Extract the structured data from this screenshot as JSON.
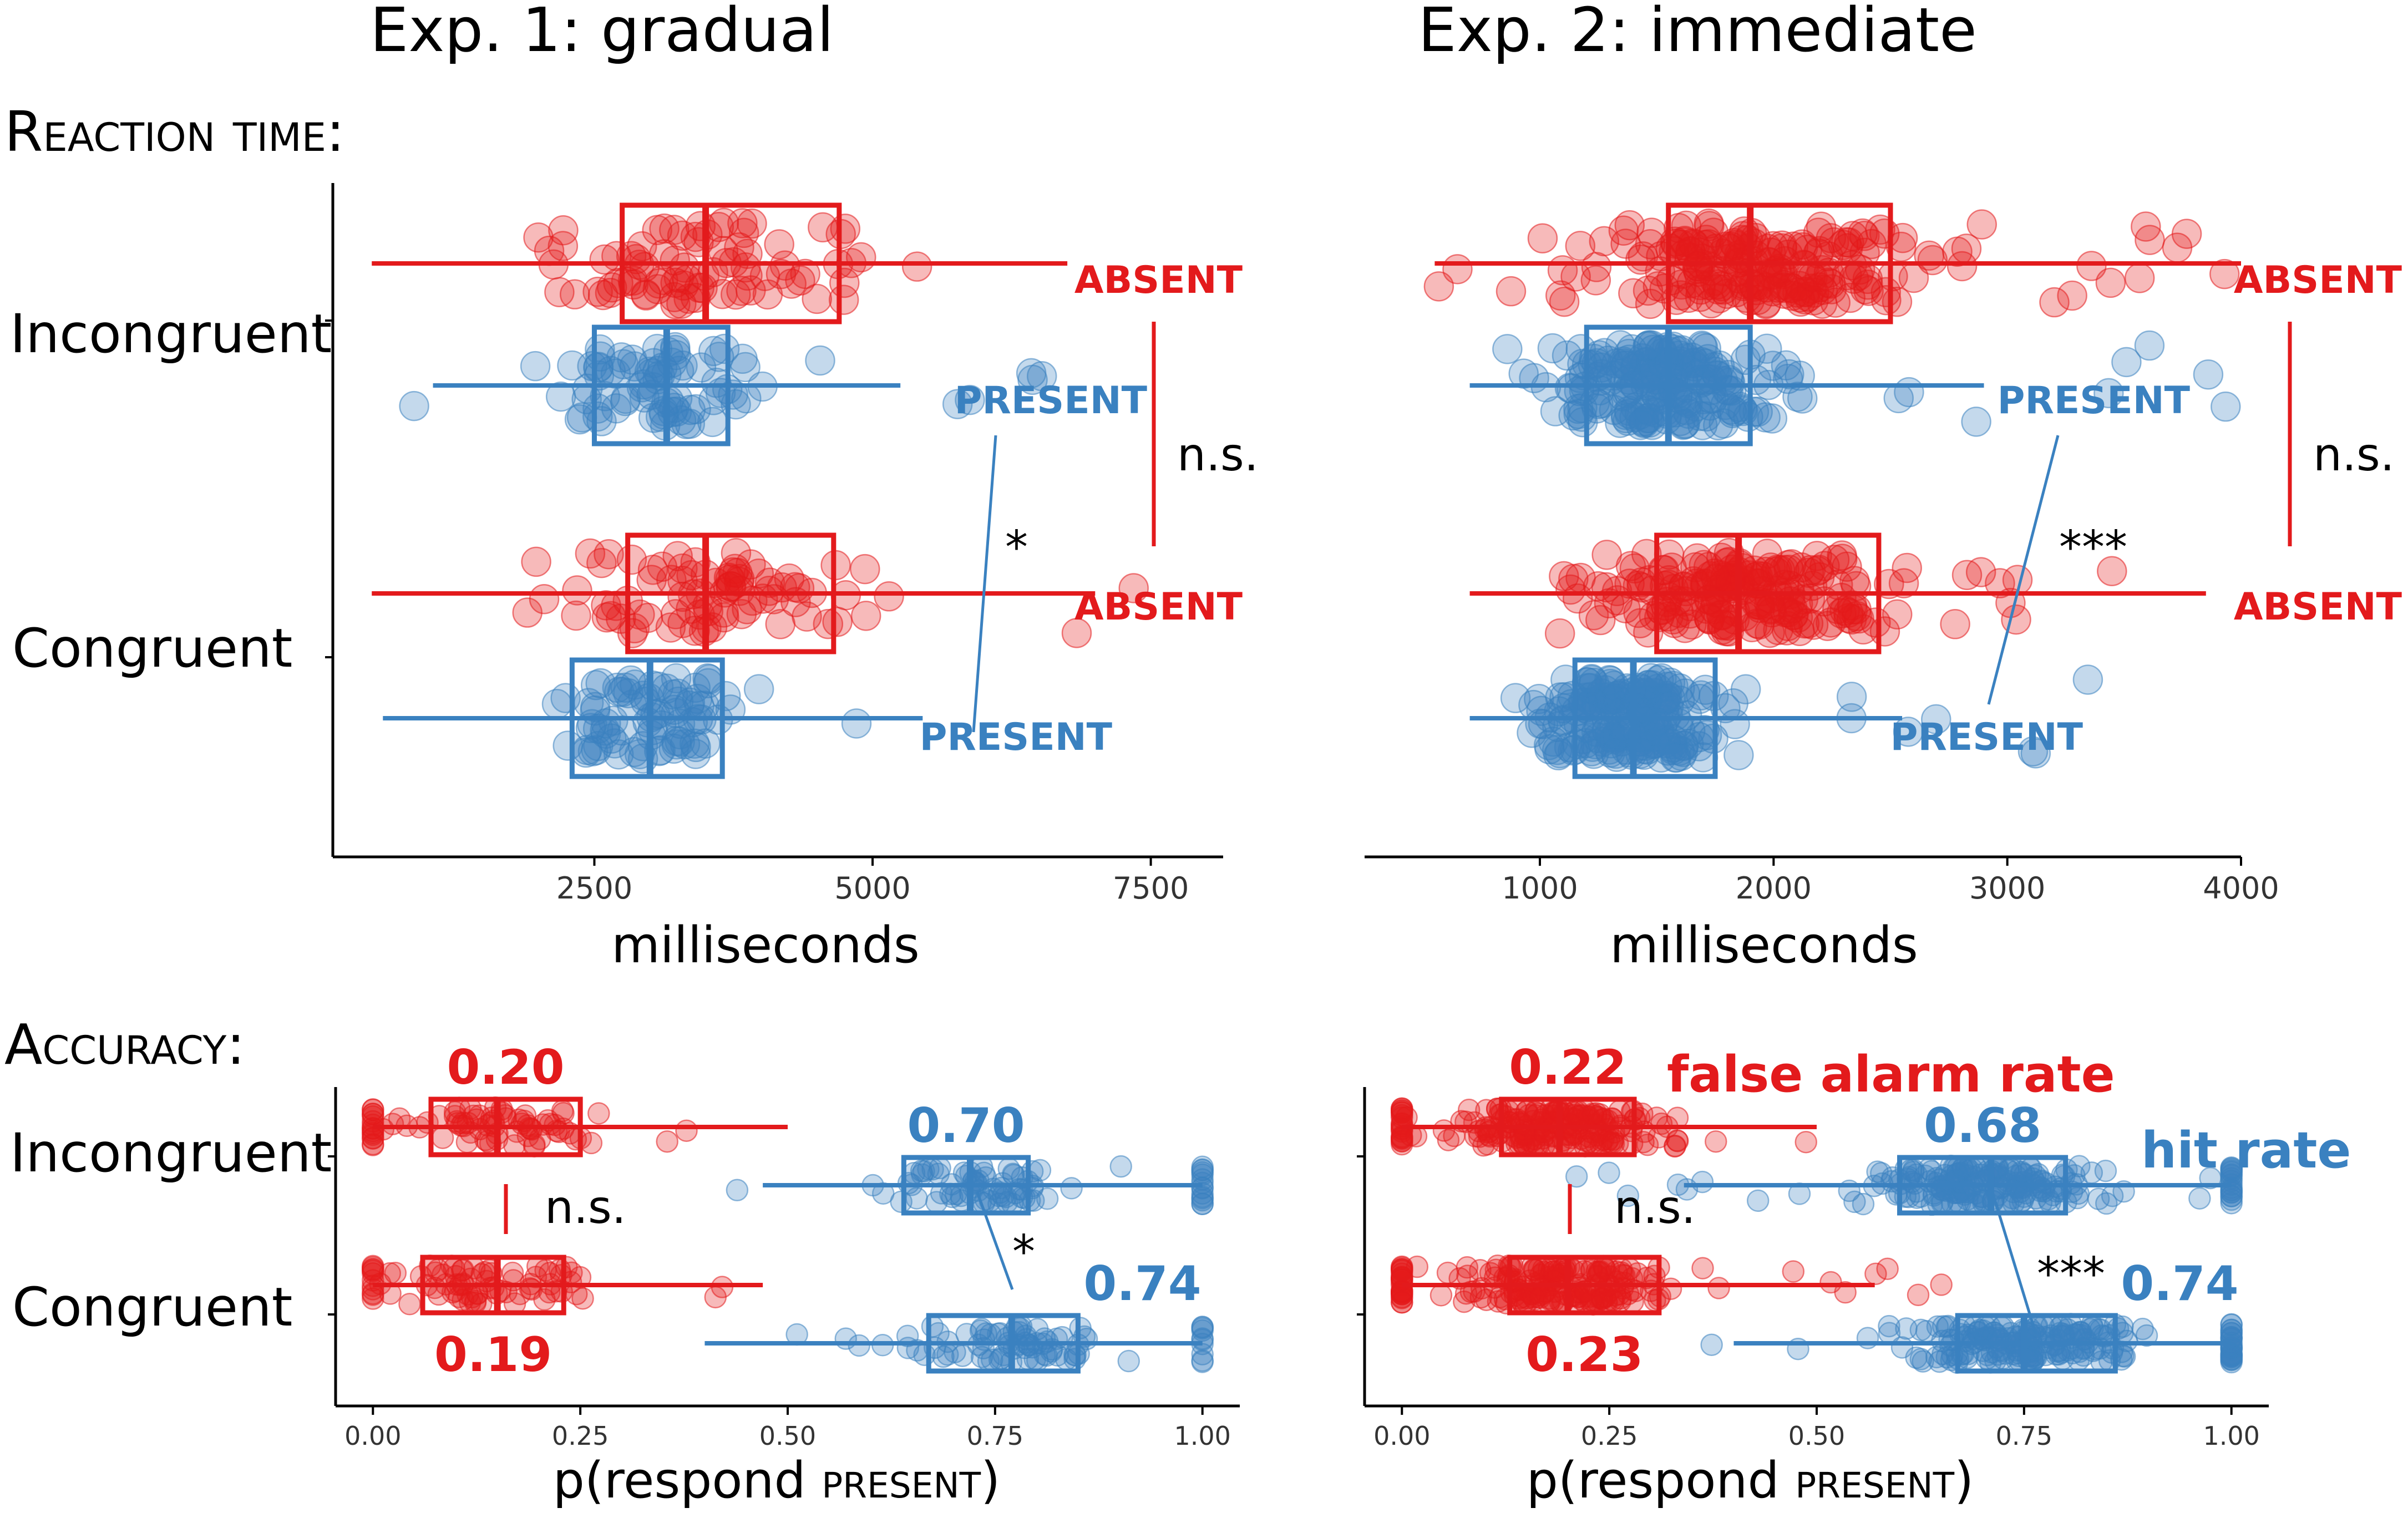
{
  "colors": {
    "absent": "#e31a1c",
    "present": "#3a81c0",
    "axis": "#000000",
    "tick": "#333333"
  },
  "titles": {
    "left": "Exp. 1: gradual",
    "right": "Exp. 2: immediate"
  },
  "sections": {
    "rt": "Reaction time:",
    "acc": "Accuracy:"
  },
  "row_labels": {
    "incongruent": "Incongruent",
    "congruent": "Congruent"
  },
  "series_labels": {
    "absent": "ABSENT",
    "present": "PRESENT"
  },
  "annotations": {
    "ns": "n.s.",
    "star1": "*",
    "star3": "***",
    "false_alarm_rate": "false alarm rate",
    "hit_rate": "hit rate"
  },
  "chart_data": [
    {
      "id": "rt-exp1",
      "type": "boxplot",
      "title": "Exp. 1: gradual",
      "section": "Reaction time:",
      "xlabel": "milliseconds",
      "xlim": [
        150,
        8150
      ],
      "xticks": [
        2500,
        5000,
        7500
      ],
      "xtick_labels": [
        "2500",
        "5000",
        "7500"
      ],
      "categories": [
        "Incongruent",
        "Congruent"
      ],
      "series": [
        {
          "name": "ABSENT",
          "category": "Incongruent",
          "whisker_low": 500,
          "q1": 2750,
          "median": 3500,
          "q3": 4700,
          "whisker_high": 6750,
          "point_range": [
            480,
            6900
          ],
          "n_points": 85
        },
        {
          "name": "PRESENT",
          "category": "Incongruent",
          "whisker_low": 1050,
          "q1": 2500,
          "median": 3150,
          "q3": 3700,
          "whisker_high": 5250,
          "point_range": [
            600,
            6550
          ],
          "n_points": 85
        },
        {
          "name": "ABSENT",
          "category": "Congruent",
          "whisker_low": 500,
          "q1": 2800,
          "median": 3500,
          "q3": 4650,
          "whisker_high": 7000,
          "point_range": [
            450,
            8100
          ],
          "n_points": 85
        },
        {
          "name": "PRESENT",
          "category": "Congruent",
          "whisker_low": 600,
          "q1": 2300,
          "median": 3000,
          "q3": 3650,
          "whisker_high": 5450,
          "point_range": [
            550,
            5550
          ],
          "n_points": 85
        }
      ],
      "labels": [
        {
          "text": "ABSENT",
          "x": 7500,
          "row": "incongruent-absent"
        },
        {
          "text": "PRESENT",
          "x": 7500,
          "row": "incongruent-present"
        },
        {
          "text": "ABSENT",
          "x": 7500,
          "row": "congruent-absent"
        },
        {
          "text": "PRESENT",
          "x": 7500,
          "row": "congruent-present"
        }
      ],
      "significance": [
        {
          "between": "ABSENT (Incongruent vs Congruent)",
          "text": "n.s."
        },
        {
          "between": "PRESENT (Incongruent vs Congruent)",
          "text": "*"
        }
      ]
    },
    {
      "id": "rt-exp2",
      "type": "boxplot",
      "title": "Exp. 2: immediate",
      "section": "Reaction time:",
      "xlabel": "milliseconds",
      "xlim": [
        250,
        4000
      ],
      "xticks": [
        1000,
        2000,
        3000,
        4000
      ],
      "xtick_labels": [
        "1000",
        "2000",
        "3000",
        "4000"
      ],
      "categories": [
        "Incongruent",
        "Congruent"
      ],
      "series": [
        {
          "name": "ABSENT",
          "category": "Incongruent",
          "whisker_low": 550,
          "q1": 1550,
          "median": 1900,
          "q3": 2500,
          "whisker_high": 4000,
          "point_range": [
            500,
            4000
          ],
          "n_points": 220
        },
        {
          "name": "PRESENT",
          "category": "Incongruent",
          "whisker_low": 700,
          "q1": 1200,
          "median": 1550,
          "q3": 1900,
          "whisker_high": 2900,
          "point_range": [
            700,
            3950
          ],
          "n_points": 220
        },
        {
          "name": "ABSENT",
          "category": "Congruent",
          "whisker_low": 700,
          "q1": 1500,
          "median": 1850,
          "q3": 2450,
          "whisker_high": 3850,
          "point_range": [
            700,
            3600
          ],
          "n_points": 220
        },
        {
          "name": "PRESENT",
          "category": "Congruent",
          "whisker_low": 700,
          "q1": 1150,
          "median": 1400,
          "q3": 1750,
          "whisker_high": 2550,
          "point_range": [
            700,
            3550
          ],
          "n_points": 220
        }
      ],
      "labels": [
        {
          "text": "ABSENT",
          "x": 3800,
          "row": "incongruent-absent"
        },
        {
          "text": "PRESENT",
          "x": 3200,
          "row": "incongruent-present"
        },
        {
          "text": "ABSENT",
          "x": 3800,
          "row": "congruent-absent"
        },
        {
          "text": "PRESENT",
          "x": 3200,
          "row": "congruent-present"
        }
      ],
      "significance": [
        {
          "between": "ABSENT (Incongruent vs Congruent)",
          "text": "n.s."
        },
        {
          "between": "PRESENT (Incongruent vs Congruent)",
          "text": "***"
        }
      ]
    },
    {
      "id": "acc-exp1",
      "type": "boxplot",
      "title": "Exp. 1: gradual",
      "section": "Accuracy:",
      "xlabel": "p(respond PRESENT)",
      "xlim": [
        -0.045,
        1.045
      ],
      "xticks": [
        0,
        0.25,
        0.5,
        0.75,
        1.0
      ],
      "xtick_labels": [
        "0.00",
        "0.25",
        "0.50",
        "0.75",
        "1.00"
      ],
      "categories": [
        "Incongruent",
        "Congruent"
      ],
      "series": [
        {
          "name": "false alarm rate",
          "category": "Incongruent",
          "whisker_low": 0.0,
          "q1": 0.07,
          "median": 0.15,
          "q3": 0.25,
          "whisker_high": 0.5,
          "mean_label": "0.20",
          "point_range": [
            0.0,
            0.5
          ],
          "n_points": 85
        },
        {
          "name": "hit rate",
          "category": "Incongruent",
          "whisker_low": 0.47,
          "q1": 0.64,
          "median": 0.72,
          "q3": 0.79,
          "whisker_high": 1.0,
          "mean_label": "0.70",
          "point_range": [
            0.36,
            1.0
          ],
          "n_points": 85
        },
        {
          "name": "false alarm rate",
          "category": "Congruent",
          "whisker_low": 0.0,
          "q1": 0.06,
          "median": 0.15,
          "q3": 0.23,
          "whisker_high": 0.47,
          "mean_label": "0.19",
          "point_range": [
            0.0,
            0.56
          ],
          "n_points": 85
        },
        {
          "name": "hit rate",
          "category": "Congruent",
          "whisker_low": 0.4,
          "q1": 0.67,
          "median": 0.77,
          "q3": 0.85,
          "whisker_high": 1.0,
          "mean_label": "0.74",
          "point_range": [
            0.4,
            1.0
          ],
          "n_points": 85
        }
      ],
      "significance": [
        {
          "between": "false alarm rate (Incongruent vs Congruent)",
          "text": "n.s."
        },
        {
          "between": "hit rate (Incongruent vs Congruent)",
          "text": "*"
        }
      ]
    },
    {
      "id": "acc-exp2",
      "type": "boxplot",
      "title": "Exp. 2: immediate",
      "section": "Accuracy:",
      "xlabel": "p(respond PRESENT)",
      "xlim": [
        -0.045,
        1.045
      ],
      "xticks": [
        0,
        0.25,
        0.5,
        0.75,
        1.0
      ],
      "xtick_labels": [
        "0.00",
        "0.25",
        "0.50",
        "0.75",
        "1.00"
      ],
      "categories": [
        "Incongruent",
        "Congruent"
      ],
      "series": [
        {
          "name": "false alarm rate",
          "category": "Incongruent",
          "whisker_low": 0.0,
          "q1": 0.12,
          "median": 0.19,
          "q3": 0.28,
          "whisker_high": 0.5,
          "mean_label": "0.22",
          "point_range": [
            0.0,
            0.52
          ],
          "n_points": 220
        },
        {
          "name": "hit rate",
          "category": "Incongruent",
          "whisker_low": 0.34,
          "q1": 0.6,
          "median": 0.71,
          "q3": 0.8,
          "whisker_high": 1.0,
          "mean_label": "0.68",
          "point_range": [
            0.2,
            1.0
          ],
          "n_points": 220
        },
        {
          "name": "false alarm rate",
          "category": "Congruent",
          "whisker_low": 0.0,
          "q1": 0.13,
          "median": 0.2,
          "q3": 0.31,
          "whisker_high": 0.57,
          "mean_label": "0.23",
          "point_range": [
            0.0,
            0.66
          ],
          "n_points": 220
        },
        {
          "name": "hit rate",
          "category": "Congruent",
          "whisker_low": 0.4,
          "q1": 0.67,
          "median": 0.75,
          "q3": 0.86,
          "whisker_high": 1.0,
          "mean_label": "0.74",
          "point_range": [
            0.35,
            1.0
          ],
          "n_points": 220
        }
      ],
      "legend_labels": [
        "false alarm rate",
        "hit rate"
      ],
      "significance": [
        {
          "between": "false alarm rate (Incongruent vs Congruent)",
          "text": "n.s."
        },
        {
          "between": "hit rate (Incongruent vs Congruent)",
          "text": "***"
        }
      ]
    }
  ]
}
